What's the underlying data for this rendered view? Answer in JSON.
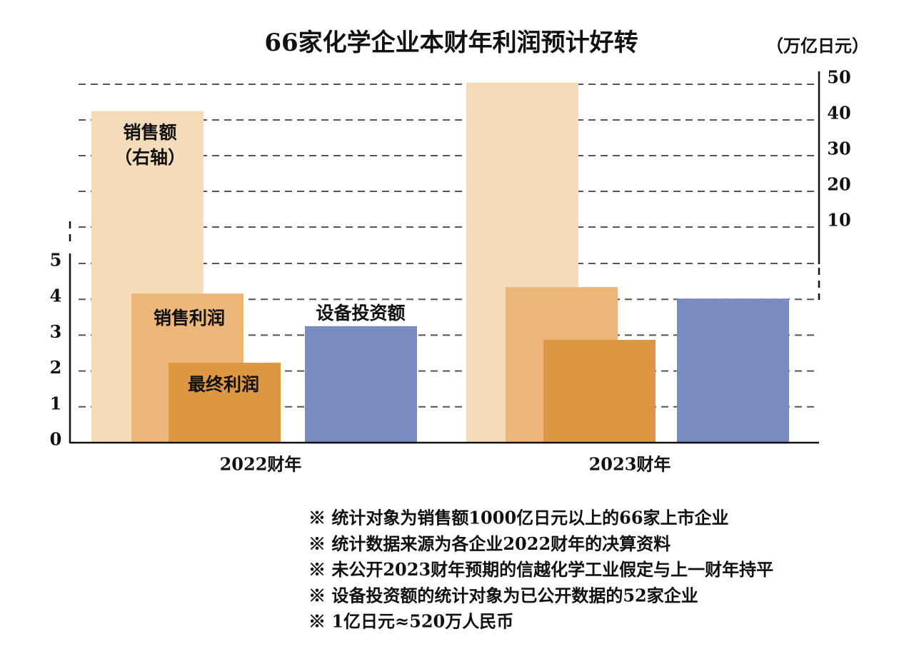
{
  "chart_data": {
    "type": "bar",
    "title": "66家化学企业本财年利润预计好转",
    "y2_unit": "（万亿日元）",
    "categories": [
      "2022财年",
      "2023财年"
    ],
    "series": [
      {
        "name": "销售额",
        "note": "（右轴）",
        "color": "#f4dbb9",
        "axis": "y2",
        "values": [
          42.5,
          50.5
        ]
      },
      {
        "name": "销售利润",
        "color": "#ebb677",
        "values": [
          4.16,
          4.34
        ]
      },
      {
        "name": "最终利润",
        "color": "#dc9742",
        "values": [
          2.23,
          2.87
        ]
      },
      {
        "name": "设备投资额",
        "color": "#7a8bbf",
        "values": [
          3.25,
          4.02
        ]
      }
    ],
    "ylim": [
      0,
      10
    ],
    "yticks": [
      0,
      1,
      2,
      3,
      4,
      5
    ],
    "y2lim": [
      0,
      50
    ],
    "y2ticks": [
      10,
      20,
      30,
      40,
      50
    ],
    "grid": true,
    "notes": [
      "※ 统计对象为销售额1000亿日元以上的66家上市企业",
      "※ 统计数据来源为各企业2022财年的决算资料",
      "※ 未公开2023财年预期的信越化学工业假定与上一财年持平",
      "※ 设备投资额的统计对象为已公开数据的52家企业",
      "※ 1亿日元≈520万人民币"
    ]
  }
}
